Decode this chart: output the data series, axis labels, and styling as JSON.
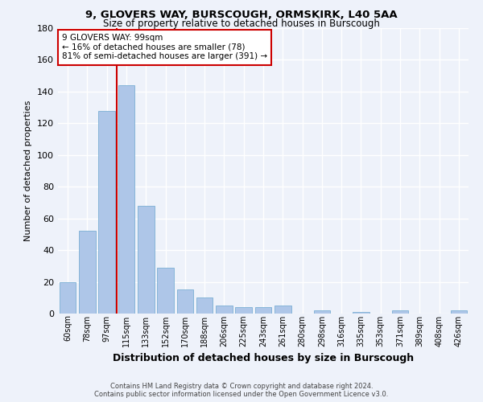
{
  "title1": "9, GLOVERS WAY, BURSCOUGH, ORMSKIRK, L40 5AA",
  "title2": "Size of property relative to detached houses in Burscough",
  "xlabel": "Distribution of detached houses by size in Burscough",
  "ylabel": "Number of detached properties",
  "categories": [
    "60sqm",
    "78sqm",
    "97sqm",
    "115sqm",
    "133sqm",
    "152sqm",
    "170sqm",
    "188sqm",
    "206sqm",
    "225sqm",
    "243sqm",
    "261sqm",
    "280sqm",
    "298sqm",
    "316sqm",
    "335sqm",
    "353sqm",
    "371sqm",
    "389sqm",
    "408sqm",
    "426sqm"
  ],
  "values": [
    20,
    52,
    128,
    144,
    68,
    29,
    15,
    10,
    5,
    4,
    4,
    5,
    0,
    2,
    0,
    1,
    0,
    2,
    0,
    0,
    2
  ],
  "bar_color": "#aec6e8",
  "bar_edge_color": "#7bafd4",
  "annotation_box_text": "9 GLOVERS WAY: 99sqm\n← 16% of detached houses are smaller (78)\n81% of semi-detached houses are larger (391) →",
  "annotation_box_color": "#ffffff",
  "annotation_box_edge_color": "#cc0000",
  "annotation_line_color": "#cc0000",
  "red_line_x": 2.5,
  "ylim": [
    0,
    180
  ],
  "yticks": [
    0,
    20,
    40,
    60,
    80,
    100,
    120,
    140,
    160,
    180
  ],
  "footer1": "Contains HM Land Registry data © Crown copyright and database right 2024.",
  "footer2": "Contains public sector information licensed under the Open Government Licence v3.0.",
  "bg_color": "#eef2fa",
  "grid_color": "#ffffff"
}
